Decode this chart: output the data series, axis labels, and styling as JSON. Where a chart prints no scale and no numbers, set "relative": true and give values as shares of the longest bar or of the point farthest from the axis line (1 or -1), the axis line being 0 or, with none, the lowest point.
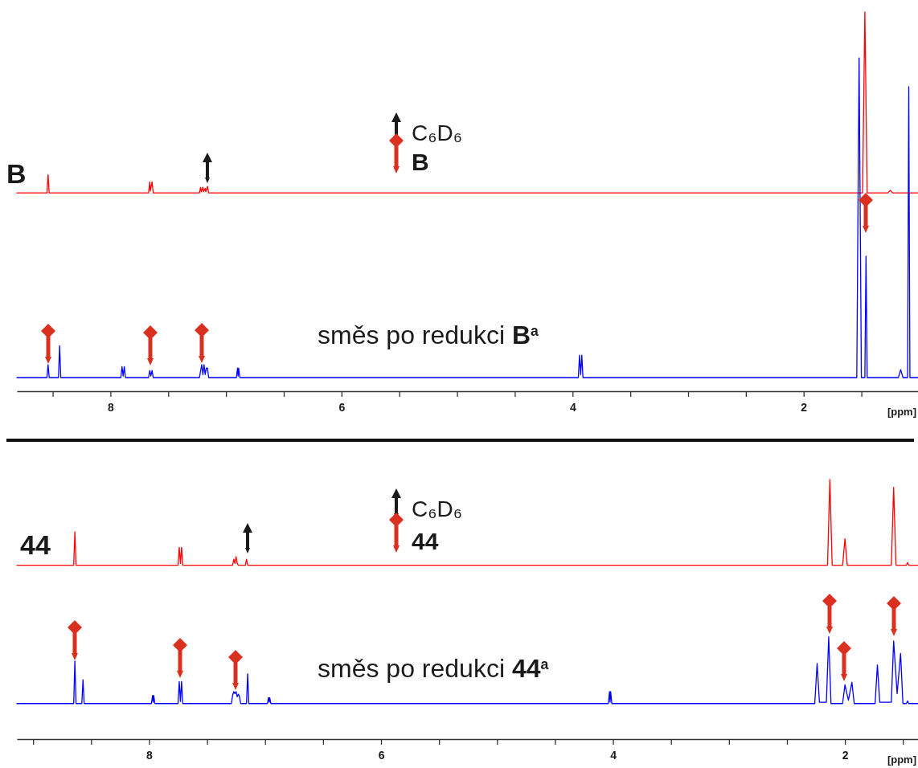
{
  "chart_data": [
    {
      "type": "line",
      "relative": true,
      "xlim": [
        8.81,
        1.01
      ],
      "xlabel": "[ppm]",
      "annotations": [
        "C₆D₆",
        "B"
      ],
      "xticks": [
        {
          "value": 8.5,
          "label": null
        },
        8,
        {
          "value": 7.5,
          "label": null
        },
        {
          "value": 7,
          "label": null
        },
        {
          "value": 6.5,
          "label": null
        },
        6,
        {
          "value": 5.5,
          "label": null
        },
        {
          "value": 5,
          "label": null
        },
        {
          "value": 4.5,
          "label": null
        },
        4,
        {
          "value": 3.5,
          "label": null
        },
        {
          "value": 3,
          "label": null
        },
        {
          "value": 2.5,
          "label": null
        },
        2,
        {
          "value": 1.5,
          "label": null
        }
      ],
      "series": [
        {
          "name": "B",
          "color": "#ff0000",
          "x": [
            8.81,
            8.55,
            8.54,
            8.53,
            7.67,
            7.66,
            7.655,
            7.64,
            7.63,
            7.23,
            7.22,
            7.215,
            7.2,
            7.195,
            7.18,
            7.175,
            7.16,
            7.15,
            1.49,
            1.47,
            1.45,
            1.27,
            1.25,
            1.23,
            1.01
          ],
          "values": [
            0.523,
            0.523,
            0.571,
            0.523,
            0.523,
            0.552,
            0.528,
            0.552,
            0.523,
            0.523,
            0.538,
            0.526,
            0.538,
            0.526,
            0.535,
            0.526,
            0.54,
            0.523,
            0.523,
            1,
            0.523,
            0.523,
            0.53,
            0.523,
            0.523
          ]
        },
        {
          "name": "směs po redukci B$^{a}$",
          "color": "#0000ff",
          "x": [
            8.81,
            8.55,
            8.54,
            8.53,
            8.45,
            8.44,
            8.43,
            7.91,
            7.9,
            7.89,
            7.88,
            7.87,
            7.67,
            7.66,
            7.65,
            7.64,
            7.63,
            7.23,
            7.21,
            7.2,
            7.19,
            7.18,
            7.17,
            7.16,
            7.15,
            6.91,
            6.9,
            6.895,
            6.89,
            6.88,
            3.95,
            3.94,
            3.93,
            3.92,
            3.91,
            1.54,
            1.52,
            1.5,
            1.47,
            1.46,
            1.45,
            1.18,
            1.16,
            1.14,
            1.1,
            1.09,
            1.08,
            1.01
          ],
          "values": [
            0.036,
            0.036,
            0.07,
            0.036,
            0.036,
            0.12,
            0.036,
            0.036,
            0.065,
            0.04,
            0.065,
            0.036,
            0.036,
            0.055,
            0.04,
            0.055,
            0.036,
            0.036,
            0.07,
            0.044,
            0.07,
            0.044,
            0.061,
            0.061,
            0.036,
            0.036,
            0.061,
            0.04,
            0.061,
            0.036,
            0.036,
            0.095,
            0.044,
            0.095,
            0.036,
            0.036,
            0.879,
            0.036,
            0.036,
            0.356,
            0.036,
            0.036,
            0.057,
            0.036,
            0.036,
            0.803,
            0.036,
            0.036
          ]
        }
      ]
    },
    {
      "type": "line",
      "relative": true,
      "xlim": [
        9.14,
        1.37
      ],
      "xlabel": "[ppm]",
      "annotations": [
        "C₆D₆",
        "44"
      ],
      "xticks": [
        {
          "value": 9,
          "label": null
        },
        {
          "value": 8.5,
          "label": null
        },
        8,
        {
          "value": 7.5,
          "label": null
        },
        {
          "value": 7,
          "label": null
        },
        {
          "value": 6.5,
          "label": null
        },
        6,
        {
          "value": 5.5,
          "label": null
        },
        {
          "value": 5,
          "label": null
        },
        {
          "value": 4.5,
          "label": null
        },
        4,
        {
          "value": 3.5,
          "label": null
        },
        {
          "value": 3,
          "label": null
        },
        {
          "value": 2.5,
          "label": null
        },
        2,
        {
          "value": 1.5,
          "label": null
        }
      ],
      "series": [
        {
          "name": "44",
          "color": "#ff0000",
          "x": [
            9.14,
            8.65,
            8.64,
            8.63,
            7.75,
            7.74,
            7.73,
            7.72,
            7.71,
            7.28,
            7.27,
            7.26,
            7.25,
            7.24,
            7.23,
            7.17,
            7.16,
            7.15,
            2.15,
            2.13,
            2.11,
            2.02,
            2.0,
            1.98,
            1.6,
            1.58,
            1.56,
            1.47,
            1.46,
            1.45,
            1.37
          ],
          "values": [
            0.67,
            0.67,
            0.799,
            0.67,
            0.67,
            0.739,
            0.677,
            0.739,
            0.67,
            0.67,
            0.693,
            0.677,
            0.703,
            0.677,
            0.67,
            0.67,
            0.693,
            0.67,
            0.67,
            1,
            0.67,
            0.67,
            0.772,
            0.67,
            0.67,
            0.97,
            0.67,
            0.67,
            0.68,
            0.67,
            0.67
          ]
        },
        {
          "name": "směs po redukci 44$^{a}$",
          "color": "#0000ff",
          "x": [
            9.14,
            8.65,
            8.64,
            8.63,
            8.58,
            8.57,
            8.56,
            7.98,
            7.97,
            7.965,
            7.96,
            7.95,
            7.75,
            7.74,
            7.73,
            7.72,
            7.71,
            7.29,
            7.28,
            7.27,
            7.26,
            7.25,
            7.24,
            7.23,
            7.22,
            7.21,
            7.16,
            7.15,
            7.14,
            6.98,
            6.97,
            6.965,
            6.96,
            6.95,
            4.04,
            4.03,
            4.025,
            4.02,
            4.01,
            2.26,
            2.24,
            2.22,
            2.16,
            2.14,
            2.12,
            2.02,
            2.0,
            1.97,
            1.94,
            1.92,
            1.74,
            1.72,
            1.7,
            1.6,
            1.58,
            1.55,
            1.52,
            1.5,
            1.47,
            1.46,
            1.45,
            1.37
          ],
          "values": [
            0.137,
            0.137,
            0.301,
            0.137,
            0.137,
            0.229,
            0.137,
            0.137,
            0.168,
            0.142,
            0.168,
            0.137,
            0.137,
            0.222,
            0.145,
            0.222,
            0.137,
            0.137,
            0.168,
            0.183,
            0.175,
            0.183,
            0.163,
            0.173,
            0.163,
            0.137,
            0.137,
            0.252,
            0.137,
            0.137,
            0.16,
            0.142,
            0.16,
            0.137,
            0.137,
            0.183,
            0.142,
            0.183,
            0.137,
            0.137,
            0.291,
            0.142,
            0.142,
            0.394,
            0.137,
            0.137,
            0.209,
            0.15,
            0.219,
            0.137,
            0.137,
            0.286,
            0.142,
            0.142,
            0.378,
            0.175,
            0.33,
            0.137,
            0.137,
            0.147,
            0.137,
            0.137
          ]
        }
      ]
    }
  ]
}
